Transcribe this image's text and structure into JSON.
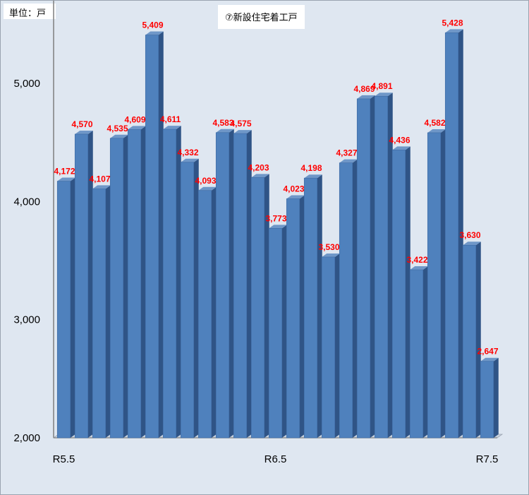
{
  "unit_label": "単位：戸",
  "chart_data": {
    "type": "bar",
    "title": "⑦新設住宅着工戸",
    "xlabel": "",
    "ylabel": "",
    "ylim": [
      2000,
      5700
    ],
    "yticks": [
      2000,
      3000,
      4000,
      5000
    ],
    "ytick_labels": [
      "2,000",
      "3,000",
      "4,000",
      "5,000"
    ],
    "x_tick_labels": [
      {
        "index": 0,
        "label": "R5.5"
      },
      {
        "index": 12,
        "label": "R6.5"
      },
      {
        "index": 24,
        "label": "R7.5"
      }
    ],
    "values": [
      4172,
      4570,
      4107,
      4535,
      4609,
      5409,
      4611,
      4332,
      4093,
      4583,
      4575,
      4203,
      3773,
      4023,
      4198,
      3530,
      4327,
      4869,
      4891,
      4436,
      3422,
      4582,
      5428,
      3630,
      2647
    ],
    "value_labels": [
      "4,172",
      "4,570",
      "4,107",
      "4,535",
      "4,609",
      "5,409",
      "4,611",
      "4,332",
      "4,093",
      "4,583",
      "4,575",
      "4,203",
      "3,773",
      "4,023",
      "4,198",
      "3,530",
      "4,327",
      "4,869",
      "4,891",
      "4,436",
      "3,422",
      "4,582",
      "5,428",
      "3,630",
      "2,647"
    ],
    "grid": false,
    "bar_color": "#4f81bd",
    "bar_side_color": "#2f5486",
    "bar_top_color": "#6f97c8",
    "label_color": "#ff0000"
  }
}
